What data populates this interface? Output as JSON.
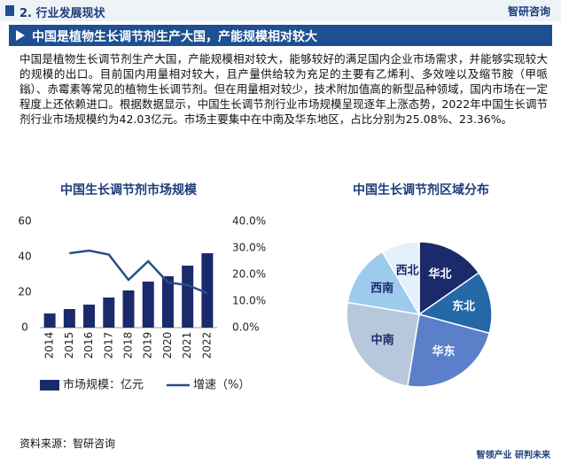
{
  "header": {
    "title": "2. 行业发展现状",
    "logo": "智研咨询"
  },
  "banner": "中国是植物生长调节剂生产大国，产能规模相对较大",
  "paragraph": "中国是植物生长调节剂生产大国，产能规模相对较大，能够较好的满足国内企业市场需求，并能够实现较大的规模的出口。目前国内用量相对较大，且产量供给较为充足的主要有乙烯利、多效唑以及缩节胺（甲哌鎓）、赤霉素等常见的植物生长调节剂。但在用量相对较少，技术附加值高的新型品种领域，国内市场在一定程度上还依赖进口。根据数据显示，中国生长调节剂行业市场规模呈现逐年上涨态势，2022年中国生长调节剂行业市场规模约为42.03亿元。市场主要集中在中南及华东地区，占比分别为25.08%、23.36%。",
  "source": "资料来源：智研咨询",
  "slogan": "智领产业 研判未来",
  "chart_data": [
    {
      "type": "bar",
      "title": "中国生长调节剂市场规模",
      "categories": [
        "2014",
        "2015",
        "2016",
        "2017",
        "2018",
        "2019",
        "2020",
        "2021",
        "2022"
      ],
      "series": [
        {
          "name": "市场规模：亿元",
          "color": "#1b2a6b",
          "values": [
            8,
            10.5,
            13,
            17,
            21,
            26,
            29,
            35,
            42.03
          ]
        },
        {
          "name": "增速（%）",
          "color": "#2a4e8a",
          "axis": "y2",
          "type": "line",
          "values": [
            null,
            28,
            29,
            27.5,
            18,
            25,
            17,
            16,
            13
          ]
        }
      ],
      "ylim": [
        0,
        60
      ],
      "yticks": [
        0,
        20,
        40,
        60
      ],
      "y2lim": [
        0,
        40
      ],
      "y2ticks": [
        {
          "value": 0,
          "label": "0.0%"
        },
        {
          "value": 10,
          "label": "10.0%"
        },
        {
          "value": 20,
          "label": "20.0%"
        },
        {
          "value": 30,
          "label": "30.0%"
        },
        {
          "value": 40,
          "label": "40.0%"
        }
      ]
    },
    {
      "type": "pie",
      "title": "中国生长调节剂区域分布",
      "categories": [
        "华北",
        "东北",
        "华东",
        "中南",
        "西南",
        "西北"
      ],
      "values": [
        15.3,
        13.9,
        23.36,
        25.08,
        13.9,
        8.46
      ],
      "colors": [
        "#1b2a6b",
        "#2468a8",
        "#5b7fc9",
        "#b7c8dc",
        "#9ccbee",
        "#e4f0fa"
      ]
    }
  ]
}
